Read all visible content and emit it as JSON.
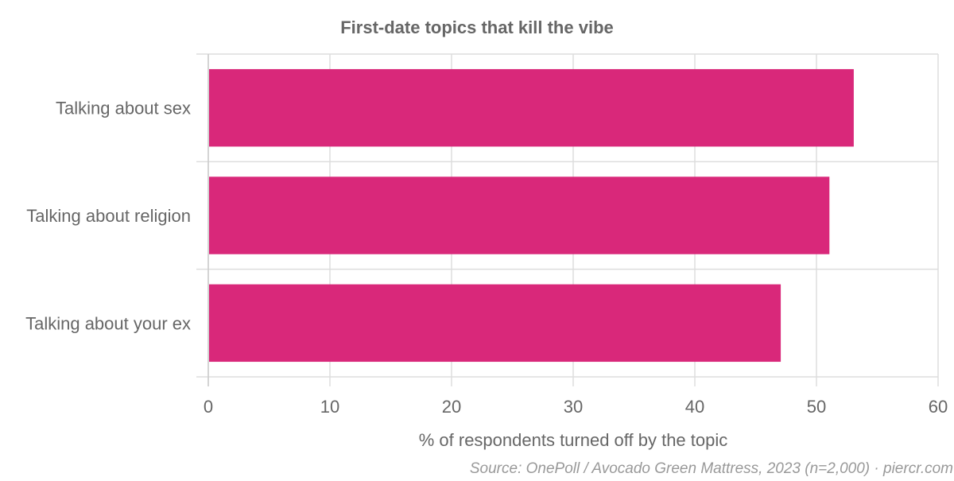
{
  "chart_data": {
    "type": "bar",
    "orientation": "horizontal",
    "title": "First-date topics that kill the vibe",
    "xlabel": "% of respondents turned off by the topic",
    "ylabel": "",
    "categories": [
      "Talking about sex",
      "Talking about religion",
      "Talking about your ex"
    ],
    "values": [
      53,
      51,
      47
    ],
    "xlim": [
      0,
      60
    ],
    "xticks": [
      0,
      10,
      20,
      30,
      40,
      50,
      60
    ],
    "grid": true,
    "legend": "none",
    "bar_color": "#d9287a",
    "source": "Source: OnePoll / Avocado Green Mattress, 2023 (n=2,000) · piercr.com"
  },
  "colors": {
    "title": "#666666",
    "text": "#666666",
    "grid": "#dddddd",
    "source": "#999999"
  }
}
